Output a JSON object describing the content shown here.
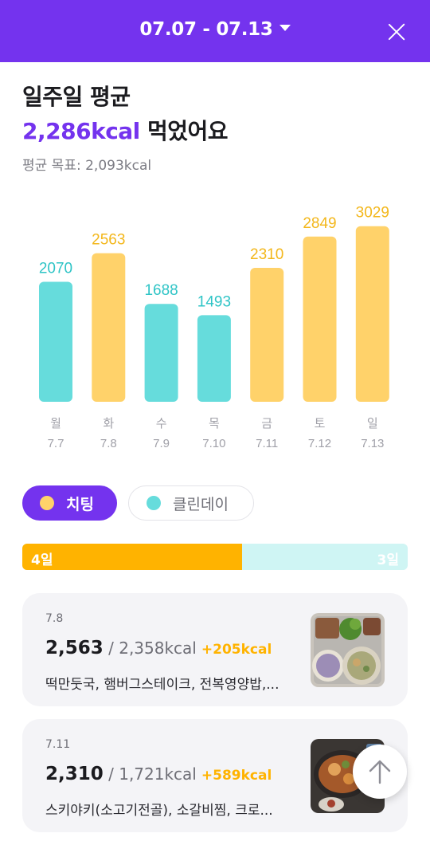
{
  "header": {
    "range_label": "07.07 - 07.13"
  },
  "summary": {
    "title": "일주일 평균",
    "avg_kcal": "2,286kcal",
    "avg_suffix": " 먹었어요",
    "goal": "평균 목표: 2,093kcal"
  },
  "chart_data": {
    "type": "bar",
    "categories": [
      "월",
      "화",
      "수",
      "목",
      "금",
      "토",
      "일"
    ],
    "dates": [
      "7.7",
      "7.8",
      "7.9",
      "7.10",
      "7.11",
      "7.12",
      "7.13"
    ],
    "values": [
      2070,
      2563,
      1688,
      1493,
      2310,
      2849,
      3029
    ],
    "kinds": [
      "clean",
      "cheat",
      "clean",
      "clean",
      "cheat",
      "cheat",
      "cheat"
    ],
    "colors": {
      "cheat": "#ffd26a",
      "cheat_label": "#f3b71b",
      "clean": "#66dcdc",
      "clean_label": "#2ec4c6"
    },
    "ylim": [
      0,
      3300
    ]
  },
  "legend": {
    "cheat_label": "치팅",
    "clean_label": "클린데이"
  },
  "ratio": {
    "cheat_days": "4일",
    "clean_days": "3일",
    "cheat_fraction": 0.57
  },
  "cards": [
    {
      "date": "7.8",
      "eaten": "2,563",
      "target": " / 2,358kcal",
      "diff": "+205kcal",
      "menu": "떡만둣국, 햄버그스테이크, 전복영양밥,..."
    },
    {
      "date": "7.11",
      "eaten": "2,310",
      "target": " / 1,721kcal",
      "diff": "+589kcal",
      "menu": "스키야키(소고기전골), 소갈비찜, 크로..."
    }
  ],
  "icons": {
    "close": "close-icon",
    "dropdown": "caret-down-icon",
    "scroll_top": "arrow-up-icon"
  }
}
